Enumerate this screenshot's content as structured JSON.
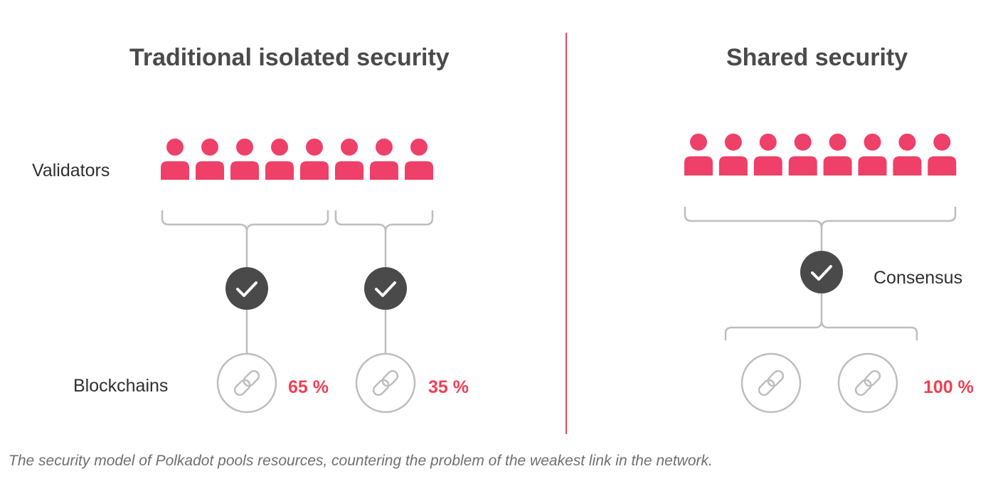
{
  "left_panel": {
    "title": "Traditional isolated security",
    "validators_label": "Validators",
    "blockchains_label": "Blockchains",
    "chains": [
      {
        "share": "65 %"
      },
      {
        "share": "35 %"
      }
    ],
    "validator_count": 8
  },
  "right_panel": {
    "title": "Shared security",
    "consensus_label": "Consensus",
    "share": "100 %",
    "validator_count": 8,
    "chain_count": 2
  },
  "caption": "The security model of Polkadot pools resources, countering the problem of the weakest link in the network.",
  "colors": {
    "validator": "#ee4068",
    "percent": "#ee4054",
    "divider": "#e14a62",
    "check_circle": "#4a4a4a",
    "lines": "#bdbdbd"
  },
  "icons": {
    "validator": "person-icon",
    "consensus": "checkmark-icon",
    "blockchain": "chain-link-icon"
  }
}
